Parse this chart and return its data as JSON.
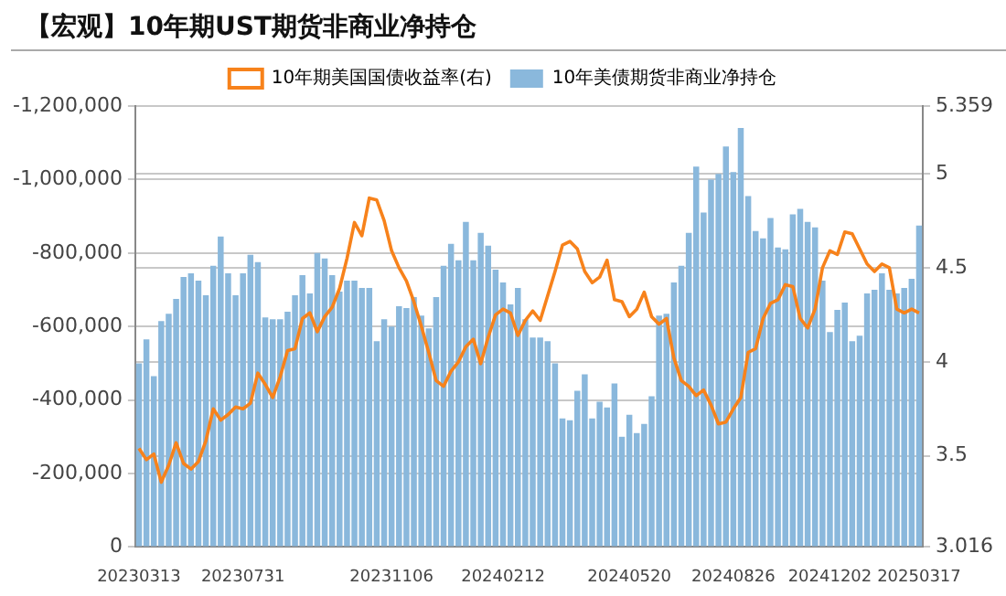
{
  "chart_data": {
    "type": "bar",
    "title": "【宏观】10年期UST期货非商业净持仓",
    "categories": [
      "20230313",
      null,
      null,
      null,
      null,
      null,
      null,
      null,
      null,
      null,
      null,
      null,
      null,
      null,
      "20230731",
      null,
      null,
      null,
      null,
      null,
      null,
      null,
      null,
      null,
      null,
      null,
      null,
      null,
      null,
      null,
      null,
      null,
      null,
      null,
      "20231106",
      null,
      null,
      null,
      null,
      null,
      null,
      null,
      null,
      null,
      null,
      null,
      null,
      null,
      null,
      "20240212",
      null,
      null,
      null,
      null,
      null,
      null,
      null,
      null,
      null,
      null,
      null,
      null,
      null,
      null,
      null,
      null,
      "20240520",
      null,
      null,
      null,
      null,
      null,
      null,
      null,
      null,
      null,
      null,
      null,
      null,
      null,
      "20240826",
      null,
      null,
      null,
      null,
      null,
      null,
      null,
      null,
      null,
      null,
      null,
      null,
      "20241202",
      null,
      null,
      null,
      null,
      null,
      null,
      null,
      null,
      null,
      null,
      null,
      "20250317"
    ],
    "series": [
      {
        "name": "10年期美国国债收益率(右)",
        "type": "line",
        "axis": "y2",
        "color": "#f7821b",
        "values": [
          3.54,
          3.48,
          3.51,
          3.36,
          3.45,
          3.57,
          3.46,
          3.43,
          3.47,
          3.58,
          3.75,
          3.69,
          3.72,
          3.76,
          3.75,
          3.78,
          3.94,
          3.88,
          3.81,
          3.92,
          4.06,
          4.07,
          4.23,
          4.26,
          4.16,
          4.24,
          4.29,
          4.39,
          4.55,
          4.74,
          4.67,
          4.87,
          4.86,
          4.75,
          4.59,
          4.5,
          4.43,
          4.32,
          4.19,
          4.05,
          3.9,
          3.87,
          3.95,
          4.0,
          4.08,
          4.12,
          3.99,
          4.13,
          4.25,
          4.28,
          4.26,
          4.14,
          4.22,
          4.27,
          4.22,
          4.35,
          4.48,
          4.62,
          4.64,
          4.6,
          4.48,
          4.42,
          4.45,
          4.54,
          4.33,
          4.32,
          4.24,
          4.28,
          4.37,
          4.24,
          4.2,
          4.23,
          4.02,
          3.9,
          3.87,
          3.82,
          3.85,
          3.77,
          3.67,
          3.68,
          3.75,
          3.81,
          4.05,
          4.07,
          4.23,
          4.31,
          4.33,
          4.41,
          4.4,
          4.23,
          4.18,
          4.28,
          4.5,
          4.59,
          4.57,
          4.69,
          4.68,
          4.6,
          4.52,
          4.48,
          4.52,
          4.5,
          4.28,
          4.26,
          4.28,
          4.26
        ]
      },
      {
        "name": "10年美债期货非商业净持仓",
        "color": "#8ab8dc",
        "values": [
          -500000,
          -565000,
          -465000,
          -615000,
          -635000,
          -675000,
          -735000,
          -745000,
          -725000,
          -685000,
          -765000,
          -845000,
          -745000,
          -685000,
          -745000,
          -795000,
          -775000,
          -625000,
          -620000,
          -620000,
          -640000,
          -685000,
          -740000,
          -690000,
          -800000,
          -785000,
          -740000,
          -695000,
          -725000,
          -725000,
          -705000,
          -705000,
          -560000,
          -620000,
          -600000,
          -655000,
          -650000,
          -680000,
          -630000,
          -595000,
          -680000,
          -765000,
          -825000,
          -780000,
          -885000,
          -780000,
          -855000,
          -820000,
          -755000,
          -720000,
          -660000,
          -705000,
          -620000,
          -570000,
          -570000,
          -560000,
          -500000,
          -350000,
          -345000,
          -425000,
          -470000,
          -350000,
          -395000,
          -380000,
          -445000,
          -300000,
          -360000,
          -310000,
          -335000,
          -410000,
          -630000,
          -635000,
          -720000,
          -765000,
          -855000,
          -1035000,
          -910000,
          -1000000,
          -1015000,
          -1090000,
          -1020000,
          -1140000,
          -955000,
          -860000,
          -840000,
          -895000,
          -815000,
          -810000,
          -905000,
          -920000,
          -885000,
          -870000,
          -725000,
          -585000,
          -645000,
          -665000,
          -560000,
          -575000,
          -690000,
          -700000,
          -745000,
          -700000,
          -690000,
          -705000,
          -730000,
          -875000
        ]
      }
    ],
    "ylim": [
      0,
      -1200000
    ],
    "yticks": [
      {
        "value": -1200000,
        "label": "-1,200,000"
      },
      {
        "value": -1000000,
        "label": "-1,000,000"
      },
      {
        "value": -800000,
        "label": "-800,000"
      },
      {
        "value": -600000,
        "label": "-600,000"
      },
      {
        "value": -400000,
        "label": "-400,000"
      },
      {
        "value": -200000,
        "label": "-200,000"
      },
      0
    ],
    "y2lim": [
      3.016,
      5.359
    ],
    "y2ticks": [
      3.016,
      3.5,
      4,
      4.5,
      5,
      5.359
    ],
    "grid": "y",
    "legend": "top",
    "marker": "none"
  }
}
